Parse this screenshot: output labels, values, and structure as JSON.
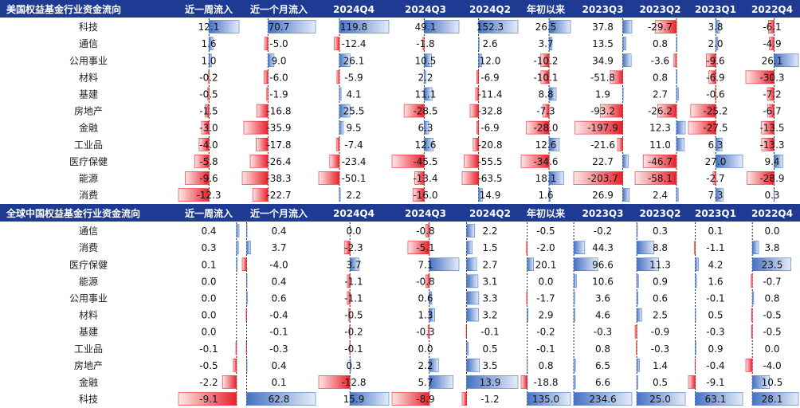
{
  "chart_data": [
    {
      "type": "table",
      "title": "美国权益基金行业资金流向",
      "columns": [
        "近一周流入",
        "近一个月流入",
        "2024Q4",
        "2024Q3",
        "2024Q2",
        "年初以来",
        "2023Q3",
        "2023Q2",
        "2023Q1",
        "2022Q4"
      ],
      "rows": [
        {
          "label": "科技",
          "values": [
            12.1,
            70.7,
            119.8,
            49.1,
            152.3,
            26.5,
            37.8,
            -29.7,
            3.8,
            -6.1
          ]
        },
        {
          "label": "通信",
          "values": [
            1.6,
            -5.0,
            -12.4,
            -1.8,
            2.6,
            3.7,
            13.5,
            0.8,
            2.0,
            -4.9
          ]
        },
        {
          "label": "公用事业",
          "values": [
            1.0,
            9.0,
            26.1,
            10.5,
            12.0,
            -10.2,
            34.9,
            -3.6,
            -9.6,
            26.1
          ]
        },
        {
          "label": "材料",
          "values": [
            -0.2,
            -6.0,
            -5.9,
            2.2,
            -6.9,
            -10.1,
            -51.8,
            0.8,
            -6.9,
            -30.3
          ]
        },
        {
          "label": "基建",
          "values": [
            -0.5,
            -1.9,
            4.1,
            11.1,
            -11.4,
            8.8,
            1.9,
            2.7,
            -0.6,
            -7.2
          ]
        },
        {
          "label": "房地产",
          "values": [
            -1.5,
            -16.8,
            25.5,
            -28.5,
            -32.8,
            -7.3,
            -93.2,
            -26.2,
            -25.2,
            -6.7
          ]
        },
        {
          "label": "金融",
          "values": [
            -3.0,
            -35.9,
            9.5,
            6.3,
            -6.9,
            -28.0,
            -197.9,
            12.3,
            -27.5,
            -13.5
          ]
        },
        {
          "label": "工业品",
          "values": [
            -4.0,
            -17.8,
            -7.4,
            12.6,
            -20.8,
            12.6,
            -21.6,
            11.0,
            6.3,
            -13.3
          ]
        },
        {
          "label": "医疗保健",
          "values": [
            -5.8,
            -26.4,
            -23.4,
            -45.5,
            -55.5,
            -34.6,
            22.7,
            -46.7,
            27.0,
            9.4
          ]
        },
        {
          "label": "能源",
          "values": [
            -9.6,
            -38.3,
            -50.1,
            -13.4,
            -63.5,
            18.1,
            -203.7,
            -58.1,
            -2.7,
            -28.9
          ]
        },
        {
          "label": "消费",
          "values": [
            -12.3,
            -22.7,
            2.2,
            -16.0,
            14.9,
            1.6,
            26.9,
            2.4,
            7.3,
            0.3
          ]
        }
      ]
    },
    {
      "type": "table",
      "title": "全球中国权益基金行业资金流向",
      "columns": [
        "近一周流入",
        "近一个月流入",
        "2024Q4",
        "2024Q3",
        "2024Q2",
        "年初以来",
        "2023Q3",
        "2023Q2",
        "2023Q1",
        "2022Q4"
      ],
      "rows": [
        {
          "label": "通信",
          "values": [
            0.4,
            0.4,
            0.0,
            -0.8,
            2.2,
            -0.5,
            -0.2,
            0.3,
            0.1,
            0.0
          ]
        },
        {
          "label": "消费",
          "values": [
            0.3,
            3.7,
            -2.3,
            -5.1,
            1.5,
            -2.0,
            44.3,
            8.8,
            -1.1,
            3.8
          ]
        },
        {
          "label": "医疗保健",
          "values": [
            0.1,
            -4.0,
            3.7,
            7.1,
            2.7,
            20.1,
            96.6,
            11.3,
            4.2,
            23.5
          ]
        },
        {
          "label": "能源",
          "values": [
            0.0,
            0.4,
            -1.1,
            -0.8,
            3.1,
            0.0,
            10.6,
            0.9,
            1.6,
            -0.7
          ]
        },
        {
          "label": "公用事业",
          "values": [
            0.0,
            0.6,
            -1.1,
            0.6,
            3.3,
            -1.7,
            3.6,
            0.6,
            -0.1,
            0.8
          ]
        },
        {
          "label": "材料",
          "values": [
            0.0,
            -0.4,
            -0.5,
            1.3,
            3.2,
            2.9,
            4.6,
            2.5,
            0.5,
            -0.5
          ]
        },
        {
          "label": "基建",
          "values": [
            0.0,
            -0.1,
            -0.2,
            -0.3,
            -0.1,
            -0.2,
            -0.3,
            -0.9,
            -0.3,
            -0.5
          ]
        },
        {
          "label": "工业品",
          "values": [
            -0.1,
            -0.3,
            -0.1,
            0.0,
            0.5,
            -0.1,
            0.8,
            -0.3,
            0.9,
            0.0
          ]
        },
        {
          "label": "房地产",
          "values": [
            -0.5,
            0.4,
            0.3,
            2.2,
            3.5,
            0.8,
            6.5,
            1.4,
            -0.4,
            -4.0
          ]
        },
        {
          "label": "金融",
          "values": [
            -2.2,
            0.1,
            -12.8,
            5.7,
            13.9,
            -18.8,
            6.6,
            0.5,
            -9.1,
            10.5
          ]
        },
        {
          "label": "科技",
          "values": [
            -9.1,
            62.8,
            15.9,
            -8.9,
            -1.2,
            135.0,
            234.6,
            25.0,
            63.1,
            28.1
          ]
        }
      ]
    }
  ],
  "colors": {
    "header_bg": "#1f3a93",
    "header_text": "#ffffff",
    "positive": "#4472c4",
    "negative": "#e8202a"
  }
}
